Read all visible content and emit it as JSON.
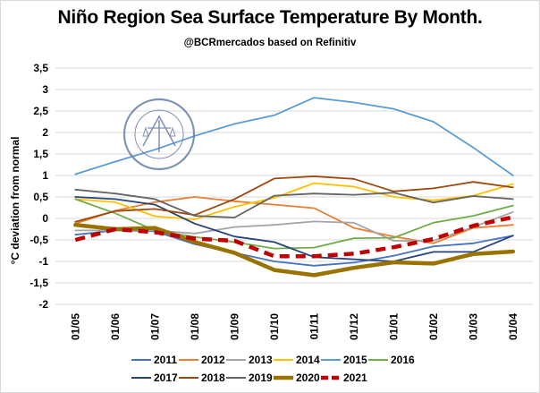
{
  "chart_data": {
    "type": "line",
    "title": "Niño Region Sea Surface Temperature By Month.",
    "subtitle": "@BCRmercados based on Refinitiv",
    "ylabel": "°C deviation from normal",
    "xlabel": "",
    "ylim": [
      -2,
      3.5
    ],
    "ytick_step": 0.5,
    "ytick_labels": [
      "-2",
      "-1,5",
      "-1",
      "-0,5",
      "0",
      "0,5",
      "1",
      "1,5",
      "2",
      "2,5",
      "3",
      "3,5"
    ],
    "grid": true,
    "legend_position": "bottom",
    "categories": [
      "01/05",
      "01/06",
      "01/07",
      "01/08",
      "01/09",
      "01/10",
      "01/11",
      "01/12",
      "01/01",
      "01/02",
      "01/03",
      "01/04"
    ],
    "series": [
      {
        "name": "2011",
        "color": "#4472c4",
        "dash": "solid",
        "width": "thin",
        "values": [
          -0.38,
          -0.28,
          -0.3,
          -0.6,
          -0.8,
          -1.0,
          -1.1,
          -1.03,
          -0.87,
          -0.65,
          -0.58,
          -0.4
        ]
      },
      {
        "name": "2012",
        "color": "#ed7d31",
        "dash": "solid",
        "width": "thin",
        "values": [
          -0.12,
          0.18,
          0.38,
          0.5,
          0.4,
          0.32,
          0.24,
          -0.22,
          -0.42,
          -0.58,
          -0.22,
          -0.15
        ]
      },
      {
        "name": "2013",
        "color": "#a5a5a5",
        "dash": "solid",
        "width": "thin",
        "values": [
          -0.28,
          -0.28,
          -0.28,
          -0.35,
          -0.2,
          -0.15,
          -0.07,
          -0.1,
          -0.52,
          -0.52,
          -0.2,
          0.15
        ]
      },
      {
        "name": "2014",
        "color": "#ffc000",
        "dash": "solid",
        "width": "thin",
        "values": [
          0.45,
          0.38,
          0.05,
          -0.02,
          0.27,
          0.48,
          0.82,
          0.74,
          0.5,
          0.42,
          0.53,
          0.8
        ]
      },
      {
        "name": "2015",
        "color": "#5b9bd5",
        "dash": "solid",
        "width": "thin",
        "values": [
          1.03,
          1.32,
          1.6,
          1.92,
          2.2,
          2.4,
          2.81,
          2.7,
          2.55,
          2.25,
          1.65,
          1.0
        ]
      },
      {
        "name": "2016",
        "color": "#70ad47",
        "dash": "solid",
        "width": "thin",
        "values": [
          0.45,
          0.12,
          -0.28,
          -0.43,
          -0.55,
          -0.7,
          -0.68,
          -0.46,
          -0.45,
          -0.1,
          0.06,
          0.3
        ]
      },
      {
        "name": "2017",
        "color": "#264478",
        "dash": "solid",
        "width": "thin",
        "values": [
          0.5,
          0.45,
          0.32,
          -0.12,
          -0.42,
          -0.55,
          -0.9,
          -0.95,
          -1.0,
          -0.78,
          -0.78,
          -0.4
        ]
      },
      {
        "name": "2018",
        "color": "#9e480e",
        "dash": "solid",
        "width": "thin",
        "values": [
          -0.08,
          0.17,
          0.22,
          0.08,
          0.45,
          0.93,
          0.98,
          0.92,
          0.63,
          0.7,
          0.85,
          0.72
        ]
      },
      {
        "name": "2019",
        "color": "#636363",
        "dash": "solid",
        "width": "thin",
        "values": [
          0.67,
          0.58,
          0.45,
          0.06,
          0.02,
          0.53,
          0.58,
          0.55,
          0.6,
          0.37,
          0.52,
          0.45
        ]
      },
      {
        "name": "2020",
        "color": "#997300",
        "dash": "solid",
        "width": "thick",
        "values": [
          -0.15,
          -0.25,
          -0.22,
          -0.55,
          -0.8,
          -1.2,
          -1.32,
          -1.15,
          -1.02,
          -1.05,
          -0.83,
          -0.77
        ]
      },
      {
        "name": "2021",
        "color": "#c00000",
        "dash": "dashed",
        "width": "thick",
        "values": [
          -0.5,
          -0.25,
          -0.32,
          -0.47,
          -0.52,
          -0.88,
          -0.88,
          -0.82,
          -0.67,
          -0.48,
          -0.17,
          0.03
        ]
      }
    ]
  }
}
